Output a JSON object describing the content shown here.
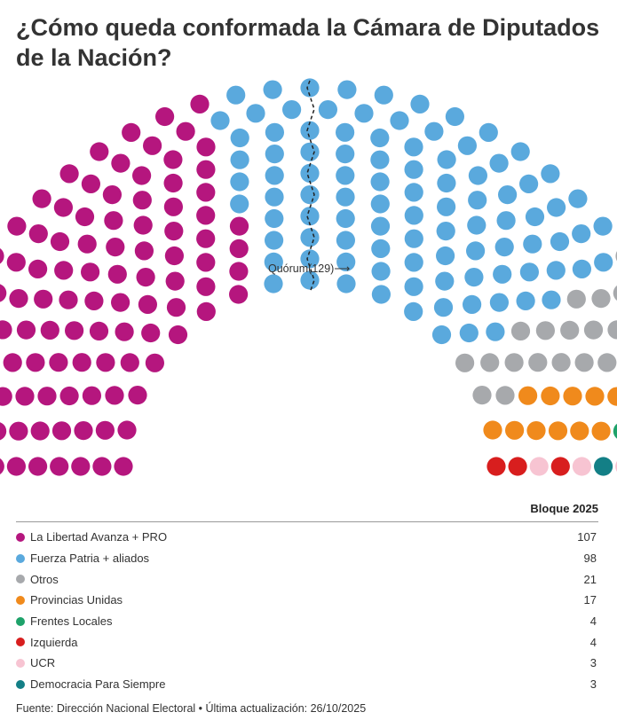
{
  "title": "¿Cómo queda conformada la Cámara de Diputados de la Nación?",
  "quorum_label": "Quórum(129)⟶",
  "legend_header": "Bloque 2025",
  "source": "Fuente: Dirección Nacional Electoral • Última actualización: 26/10/2025",
  "chart_data": {
    "type": "parliament",
    "total_seats": 257,
    "quorum": 129,
    "rows": 10,
    "series": [
      {
        "name": "La Libertad Avanza + PRO",
        "value": 107,
        "color": "#b5167e"
      },
      {
        "name": "Fuerza Patria + aliados",
        "value": 98,
        "color": "#5aa9dd"
      },
      {
        "name": "Otros",
        "value": 21,
        "color": "#a7a9ac"
      },
      {
        "name": "Provincias Unidas",
        "value": 17,
        "color": "#f08a1c"
      },
      {
        "name": "Frentes Locales",
        "value": 4,
        "color": "#1ea26a"
      },
      {
        "name": "Izquierda",
        "value": 4,
        "color": "#d81e1e"
      },
      {
        "name": "UCR",
        "value": 3,
        "color": "#f7c4d2"
      },
      {
        "name": "Democracia Para Siempre",
        "value": 3,
        "color": "#137f86"
      }
    ]
  }
}
